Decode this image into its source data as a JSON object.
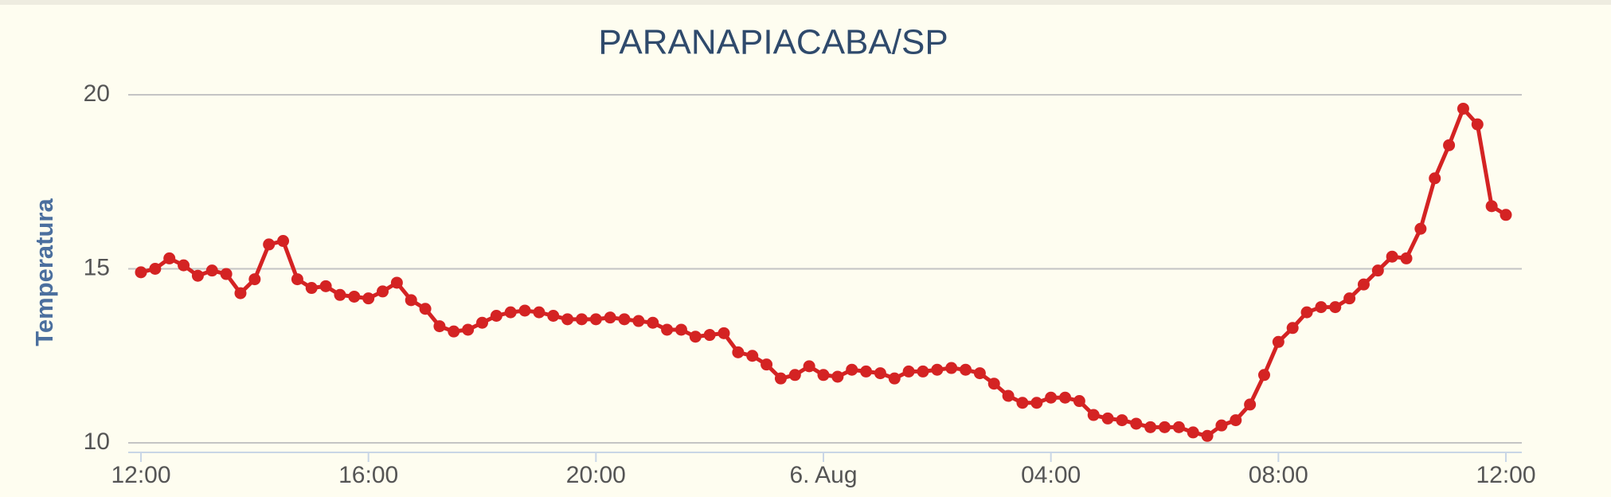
{
  "chart_data": {
    "type": "line",
    "title": "PARANAPIACABA/SP",
    "y_label": "Temperatura",
    "categories": [
      "12:00",
      null,
      null,
      null,
      null,
      null,
      null,
      null,
      null,
      null,
      null,
      null,
      null,
      null,
      null,
      null,
      "16:00",
      null,
      null,
      null,
      null,
      null,
      null,
      null,
      null,
      null,
      null,
      null,
      null,
      null,
      null,
      null,
      "20:00",
      null,
      null,
      null,
      null,
      null,
      null,
      null,
      null,
      null,
      null,
      null,
      null,
      null,
      null,
      null,
      "6. Aug",
      null,
      null,
      null,
      null,
      null,
      null,
      null,
      null,
      null,
      null,
      null,
      null,
      null,
      null,
      null,
      "04:00",
      null,
      null,
      null,
      null,
      null,
      null,
      null,
      null,
      null,
      null,
      null,
      null,
      null,
      null,
      null,
      "08:00",
      null,
      null,
      null,
      null,
      null,
      null,
      null,
      null,
      null,
      null,
      null,
      null,
      null,
      null,
      null,
      "12:00"
    ],
    "series": [
      {
        "name": "Temperatura",
        "color": "#d42323",
        "values": [
          14.9,
          15.0,
          15.3,
          15.1,
          14.8,
          14.95,
          14.85,
          14.3,
          14.7,
          15.7,
          15.8,
          14.7,
          14.45,
          14.5,
          14.25,
          14.2,
          14.15,
          14.35,
          14.6,
          14.1,
          13.85,
          13.35,
          13.2,
          13.25,
          13.45,
          13.65,
          13.75,
          13.8,
          13.75,
          13.65,
          13.55,
          13.55,
          13.55,
          13.6,
          13.55,
          13.5,
          13.45,
          13.25,
          13.25,
          13.05,
          13.1,
          13.15,
          12.6,
          12.5,
          12.25,
          11.85,
          11.95,
          12.2,
          11.95,
          11.9,
          12.1,
          12.05,
          12.0,
          11.85,
          12.05,
          12.05,
          12.1,
          12.15,
          12.1,
          12.0,
          11.7,
          11.35,
          11.15,
          11.15,
          11.3,
          11.3,
          11.2,
          10.8,
          10.7,
          10.65,
          10.55,
          10.45,
          10.45,
          10.45,
          10.3,
          10.2,
          10.5,
          10.65,
          11.1,
          11.95,
          12.9,
          13.3,
          13.75,
          13.9,
          13.9,
          14.15,
          14.55,
          14.95,
          15.35,
          15.3,
          16.15,
          17.6,
          18.55,
          19.6,
          19.15,
          16.8,
          16.55
        ]
      }
    ],
    "ylim": [
      10,
      20
    ],
    "yticks": [
      10,
      15,
      20
    ],
    "grid": true
  }
}
